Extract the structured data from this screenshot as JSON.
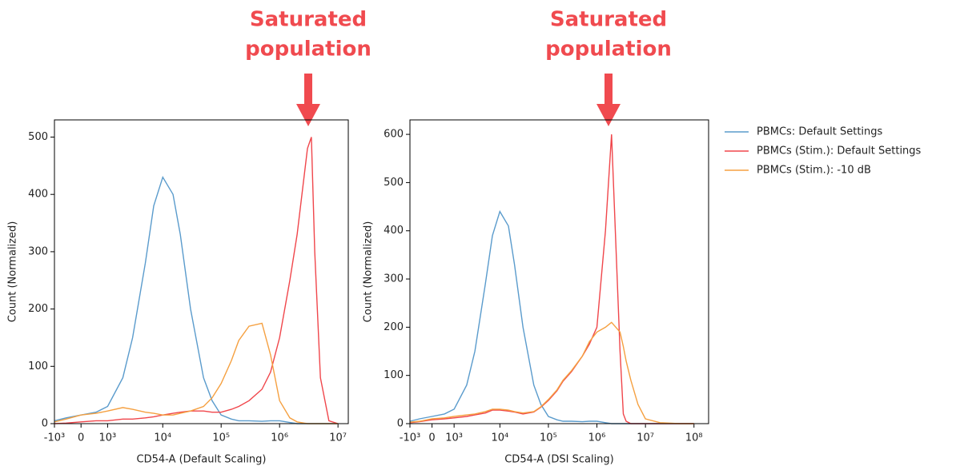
{
  "chart_data": [
    {
      "type": "line",
      "xscale": "symlog",
      "legend": "outside right",
      "annotation": [
        "Saturated",
        "population"
      ],
      "xlabel": "CD54-A (Default Scaling)",
      "ylabel": "Count (Normalized)",
      "x": [
        -1000,
        -500,
        0,
        500,
        1000,
        2000,
        3000,
        5000,
        7000,
        10000,
        15000,
        20000,
        30000,
        50000,
        70000,
        100000,
        150000,
        200000,
        300000,
        500000,
        700000,
        1000000,
        1500000,
        2000000,
        3000000,
        3500000,
        4000000,
        5000000,
        7000000,
        10000000
      ],
      "xlim": [
        -1000,
        15000000
      ],
      "xticks": [
        {
          "value": -1000,
          "label": "-10³"
        },
        0,
        {
          "value": 1000,
          "label": "10³"
        },
        {
          "value": 10000,
          "label": "10⁴"
        },
        {
          "value": 100000,
          "label": "10⁵"
        },
        {
          "value": 1000000,
          "label": "10⁶"
        },
        {
          "value": 10000000,
          "label": "10⁷"
        }
      ],
      "ylim": [
        0,
        530
      ],
      "yticks": [
        0,
        100,
        200,
        300,
        400,
        500
      ],
      "series": [
        {
          "name": "PBMCs: Default Settings",
          "color": "#5a9bcc",
          "values": [
            5,
            10,
            15,
            20,
            30,
            80,
            150,
            280,
            380,
            430,
            400,
            330,
            200,
            80,
            40,
            15,
            8,
            5,
            5,
            4,
            5,
            5,
            2,
            0,
            0,
            0,
            0,
            0,
            0,
            0
          ]
        },
        {
          "name": "PBMCs (Stim.): Default Settings",
          "color": "#f0464b",
          "values": [
            0,
            1,
            3,
            5,
            5,
            8,
            8,
            10,
            12,
            15,
            18,
            20,
            22,
            22,
            20,
            20,
            25,
            30,
            40,
            60,
            90,
            150,
            250,
            330,
            480,
            500,
            300,
            80,
            5,
            0
          ]
        },
        {
          "name": "PBMCs (Stim.): -10 dB",
          "color": "#f5a040",
          "values": [
            3,
            8,
            15,
            18,
            22,
            28,
            25,
            20,
            18,
            15,
            15,
            18,
            22,
            30,
            45,
            70,
            110,
            145,
            170,
            175,
            120,
            40,
            10,
            3,
            0,
            0,
            0,
            0,
            0,
            0
          ]
        }
      ]
    },
    {
      "type": "line",
      "xscale": "symlog",
      "annotation": [
        "Saturated",
        "population"
      ],
      "xlabel": "CD54-A (DSI Scaling)",
      "ylabel": "Count (Normalized)",
      "x": [
        -1000,
        -500,
        0,
        500,
        1000,
        2000,
        3000,
        5000,
        7000,
        10000,
        15000,
        20000,
        30000,
        50000,
        70000,
        100000,
        150000,
        200000,
        300000,
        500000,
        700000,
        1000000,
        1500000,
        2000000,
        3000000,
        3500000,
        4000000,
        5000000,
        7000000,
        10000000,
        20000000,
        50000000,
        100000000
      ],
      "xlim": [
        -1000,
        200000000
      ],
      "xticks": [
        {
          "value": -1000,
          "label": "-10³"
        },
        0,
        {
          "value": 1000,
          "label": "10³"
        },
        {
          "value": 10000,
          "label": "10⁴"
        },
        {
          "value": 100000,
          "label": "10⁵"
        },
        {
          "value": 1000000,
          "label": "10⁶"
        },
        {
          "value": 10000000,
          "label": "10⁷"
        },
        {
          "value": 100000000,
          "label": "10⁸"
        }
      ],
      "ylim": [
        0,
        630
      ],
      "yticks": [
        0,
        100,
        200,
        300,
        400,
        500,
        600
      ],
      "series": [
        {
          "color": "#5a9bcc",
          "values": [
            5,
            10,
            15,
            20,
            30,
            80,
            150,
            290,
            390,
            440,
            410,
            330,
            200,
            80,
            40,
            15,
            8,
            5,
            5,
            4,
            5,
            5,
            2,
            0,
            0,
            0,
            0,
            0,
            0,
            0,
            0,
            0,
            0
          ]
        },
        {
          "color": "#f0464b",
          "values": [
            2,
            4,
            8,
            10,
            12,
            15,
            18,
            22,
            28,
            28,
            26,
            24,
            20,
            24,
            34,
            48,
            68,
            88,
            108,
            140,
            165,
            200,
            400,
            600,
            150,
            20,
            5,
            0,
            0,
            0,
            0,
            0,
            0
          ]
        },
        {
          "color": "#f5a040",
          "values": [
            3,
            5,
            10,
            12,
            15,
            18,
            20,
            25,
            30,
            30,
            28,
            25,
            22,
            25,
            35,
            50,
            70,
            90,
            110,
            140,
            170,
            190,
            200,
            210,
            190,
            160,
            130,
            90,
            40,
            10,
            2,
            0,
            0
          ]
        }
      ]
    }
  ]
}
